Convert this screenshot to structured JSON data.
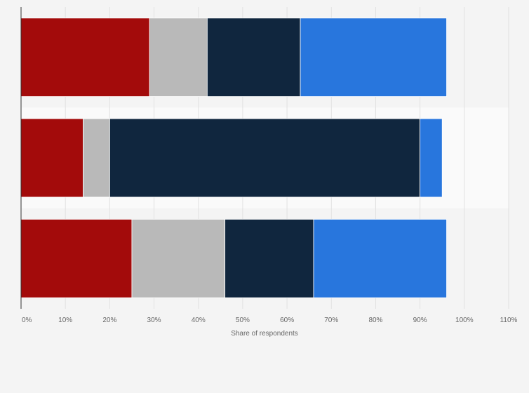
{
  "chart_data": {
    "type": "bar",
    "orientation": "horizontal",
    "stacked": true,
    "categories": [
      "",
      "",
      ""
    ],
    "series": [
      {
        "color": "#a30b0b",
        "values": [
          29,
          14,
          25
        ]
      },
      {
        "color": "#b9b9b9",
        "values": [
          13,
          6,
          21
        ]
      },
      {
        "color": "#10263e",
        "values": [
          21,
          70,
          20
        ]
      },
      {
        "color": "#2876dd",
        "values": [
          33,
          5,
          30
        ]
      }
    ],
    "xlabel": "Share of respondents",
    "xlim": [
      0,
      110
    ],
    "x_ticks": [
      "0%",
      "10%",
      "20%",
      "30%",
      "40%",
      "50%",
      "60%",
      "70%",
      "80%",
      "90%",
      "100%",
      "110%"
    ],
    "grid": true,
    "legend": "none"
  }
}
